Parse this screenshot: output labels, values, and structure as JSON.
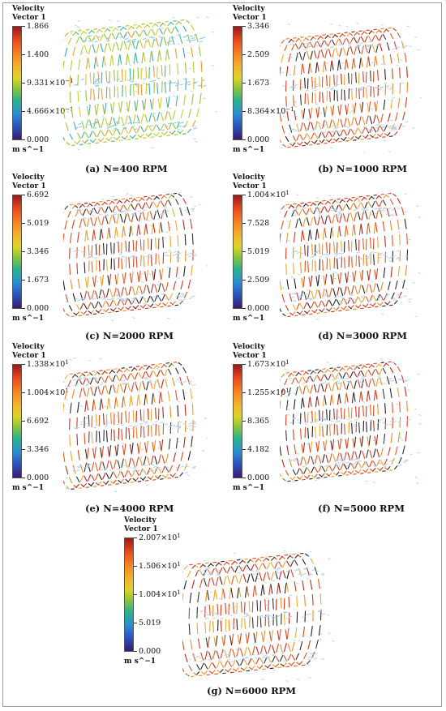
{
  "panels": [
    {
      "legend_title": "Velocity\nVector 1",
      "ticks": [
        "1.866",
        "1.400",
        "9.331×10",
        "4.666×10",
        "0.000"
      ],
      "tick_exp": [
        "",
        "",
        "−1",
        "−1",
        ""
      ],
      "unit": "m s^−1",
      "caption": "(a) N=400 RPM",
      "style": "low"
    },
    {
      "legend_title": "Velocity\nVector 1",
      "ticks": [
        "3.346",
        "2.509",
        "1.673",
        "8.364×10",
        "0.000"
      ],
      "tick_exp": [
        "",
        "",
        "",
        "−1",
        ""
      ],
      "unit": "m s^−1",
      "caption": "(b) N=1000 RPM",
      "style": "high"
    },
    {
      "legend_title": "Velocity\nVector 1",
      "ticks": [
        "6.692",
        "5.019",
        "3.346",
        "1.673",
        "0.000"
      ],
      "tick_exp": [
        "",
        "",
        "",
        "",
        ""
      ],
      "unit": "m s^−1",
      "caption": "(c) N=2000 RPM",
      "style": "high"
    },
    {
      "legend_title": "Velocity\nVector 1",
      "ticks": [
        "1.004×10",
        "7.528",
        "5.019",
        "2.509",
        "0.000"
      ],
      "tick_exp": [
        "1",
        "",
        "",
        "",
        ""
      ],
      "unit": "m s^−1",
      "caption": "(d) N=3000 RPM",
      "style": "high"
    },
    {
      "legend_title": "Velocity\nVector 1",
      "ticks": [
        "1.338×10",
        "1.004×10",
        "6.692",
        "3.346",
        "0.000"
      ],
      "tick_exp": [
        "1",
        "1",
        "",
        "",
        ""
      ],
      "unit": "m s^−1",
      "caption": "(e) N=4000 RPM",
      "style": "high"
    },
    {
      "legend_title": "Velocity\nVector 1",
      "ticks": [
        "1.673×10",
        "1.255×10",
        "8.365",
        "4.182",
        "0.000"
      ],
      "tick_exp": [
        "1",
        "1",
        "",
        "",
        ""
      ],
      "unit": "m s^−1",
      "caption": "(f) N=5000 RPM",
      "style": "high"
    },
    {
      "legend_title": "Velocity\nVector 1",
      "ticks": [
        "2.007×10",
        "1.506×10",
        "1.004×10",
        "5.019",
        "0.000"
      ],
      "tick_exp": [
        "1",
        "1",
        "1",
        "",
        ""
      ],
      "unit": "m s^−1",
      "caption": "(g) N=6000 RPM",
      "style": "high"
    }
  ]
}
